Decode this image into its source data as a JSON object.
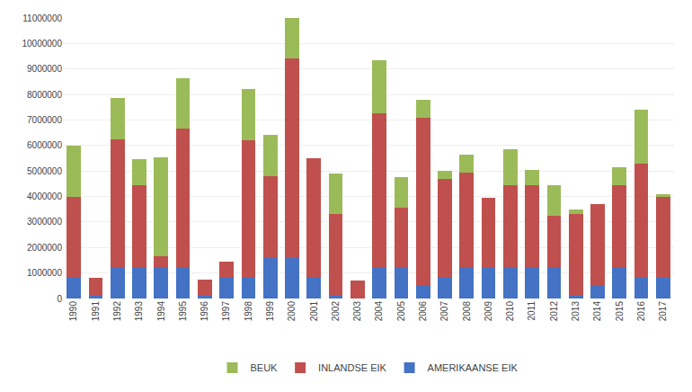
{
  "chart_data": {
    "type": "bar",
    "categories": [
      "1990",
      "1991",
      "1992",
      "1993",
      "1994",
      "1995",
      "1996",
      "1997",
      "1998",
      "1999",
      "2000",
      "2001",
      "2002",
      "2003",
      "2004",
      "2005",
      "2006",
      "2007",
      "2008",
      "2009",
      "2010",
      "2011",
      "2012",
      "2013",
      "2014",
      "2015",
      "2016",
      "2017"
    ],
    "series": [
      {
        "name": "AMERIKAANSE EIK",
        "color": "#4472c4",
        "values": [
          800000,
          100000,
          1250000,
          1250000,
          1250000,
          1250000,
          100000,
          800000,
          800000,
          1600000,
          1600000,
          800000,
          100000,
          0,
          1250000,
          1250000,
          500000,
          800000,
          1250000,
          1250000,
          1250000,
          1250000,
          1250000,
          100000,
          500000,
          1250000,
          800000,
          800000
        ]
      },
      {
        "name": "INLANDSE EIK",
        "color": "#c0504d",
        "values": [
          3200000,
          700000,
          5000000,
          3200000,
          400000,
          5400000,
          650000,
          650000,
          5400000,
          3200000,
          7800000,
          4700000,
          3200000,
          700000,
          6000000,
          2300000,
          6600000,
          3900000,
          3700000,
          2700000,
          3200000,
          3200000,
          2000000,
          3200000,
          3200000,
          3200000,
          4500000,
          3200000
        ]
      },
      {
        "name": "BEUK",
        "color": "#9bbb59",
        "values": [
          2000000,
          0,
          1600000,
          1000000,
          3900000,
          2000000,
          0,
          0,
          2000000,
          1600000,
          1600000,
          0,
          1600000,
          0,
          2100000,
          1200000,
          700000,
          300000,
          700000,
          0,
          1400000,
          600000,
          1200000,
          200000,
          0,
          700000,
          2100000,
          100000
        ]
      }
    ],
    "stacked": true,
    "ylim": [
      0,
      11000000
    ],
    "yticks": [
      0,
      1000000,
      2000000,
      3000000,
      4000000,
      5000000,
      6000000,
      7000000,
      8000000,
      9000000,
      10000000,
      11000000
    ],
    "grid": true,
    "legend": "bottom"
  }
}
